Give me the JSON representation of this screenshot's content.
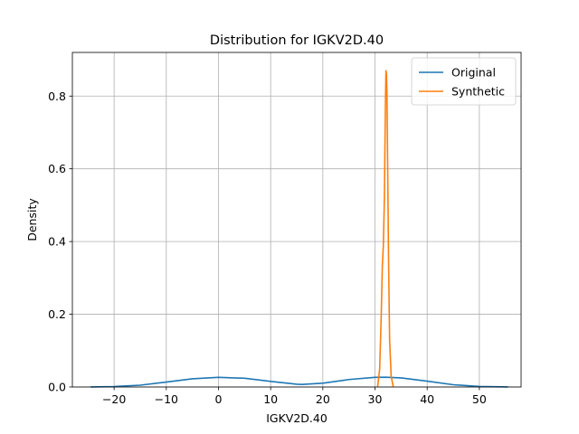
{
  "chart_data": {
    "type": "line",
    "title": "Distribution for IGKV2D.40",
    "xlabel": "IGKV2D.40",
    "ylabel": "Density",
    "xlim": [
      -28,
      58
    ],
    "ylim": [
      0,
      0.92
    ],
    "grid": true,
    "legend_position": "top-right",
    "x_ticks": [
      -20,
      -10,
      0,
      10,
      20,
      30,
      40,
      50
    ],
    "x_tick_labels": [
      "−20",
      "−10",
      "0",
      "10",
      "20",
      "30",
      "40",
      "50"
    ],
    "y_ticks": [
      0.0,
      0.2,
      0.4,
      0.6,
      0.8
    ],
    "y_tick_labels": [
      "0.0",
      "0.2",
      "0.4",
      "0.6",
      "0.8"
    ],
    "series": [
      {
        "name": "Original",
        "color": "#1f77b4",
        "x": [
          -24.5,
          -20,
          -15,
          -10,
          -5,
          0,
          5,
          10,
          15,
          16,
          20,
          25,
          30,
          32,
          35,
          40,
          45,
          50,
          55.5
        ],
        "y": [
          0.0002,
          0.0012,
          0.005,
          0.0135,
          0.0225,
          0.0265,
          0.024,
          0.0155,
          0.0075,
          0.007,
          0.0105,
          0.0205,
          0.0265,
          0.027,
          0.025,
          0.016,
          0.0062,
          0.0014,
          0.0001
        ]
      },
      {
        "name": "Synthetic",
        "color": "#ff7f0e",
        "x": [
          30.5,
          30.9,
          31.2,
          31.4,
          31.6,
          31.8,
          32.0,
          32.1,
          32.2,
          32.3,
          32.4,
          32.6,
          32.8,
          33.1,
          33.5
        ],
        "y": [
          0.0,
          0.05,
          0.2,
          0.33,
          0.39,
          0.52,
          0.78,
          0.87,
          0.86,
          0.8,
          0.65,
          0.35,
          0.13,
          0.03,
          0.0
        ]
      }
    ]
  }
}
